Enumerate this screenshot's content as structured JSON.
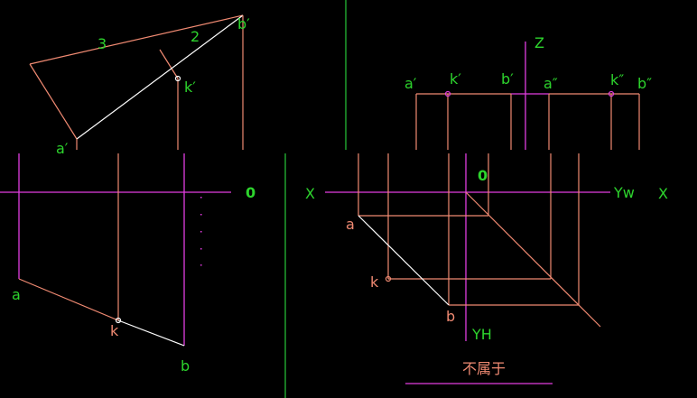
{
  "labels": {
    "seg3": "3",
    "seg2": "2",
    "b_prime": "b′",
    "k_prime": "k′",
    "a_prime": "a′",
    "a_prime_right": "a′",
    "k_prime_right": "k′",
    "b_prime_right": "b′",
    "a_dprime": "a″",
    "k_dprime": "k″",
    "b_dprime": "b″",
    "z_axis": "Z",
    "origin_left": "0",
    "origin_right": "0",
    "x_left": "X",
    "x_right": "X",
    "yw": "Yw",
    "yh": "YH",
    "a_left": "a",
    "k_left": "k",
    "b_left": "b",
    "a_right": "a",
    "k_right": "k",
    "b_right": "b",
    "caption": "不属于"
  },
  "colors": {
    "background": "#000000",
    "label_green": "#2dd42d",
    "label_salmon": "#f08a72",
    "axis_magenta": "#e23de0",
    "projection_salmon": "#f08a72",
    "line_white": "#ffffff",
    "divider_green": "#27c83a"
  }
}
